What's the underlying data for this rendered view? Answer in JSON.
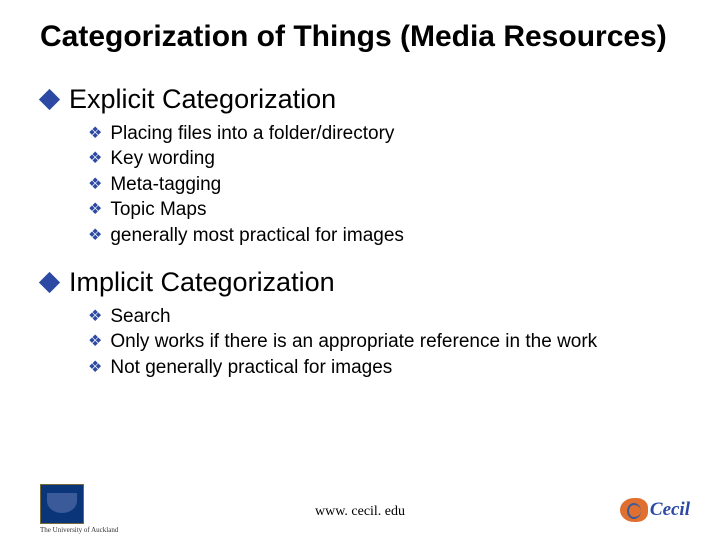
{
  "slide": {
    "title": "Categorization of Things (Media Resources)",
    "sections": [
      {
        "heading": "Explicit Categorization",
        "items": [
          "Placing files into a folder/directory",
          "Key wording",
          "Meta-tagging",
          "Topic Maps",
          "generally most practical for images"
        ]
      },
      {
        "heading": "Implicit Categorization",
        "items": [
          "Search",
          "Only works if there is an appropriate reference in the work",
          "Not generally practical for images"
        ]
      }
    ],
    "footer_url": "www. cecil. edu",
    "logo_left_caption": "The University of Auckland",
    "logo_right_text": "Cecil"
  },
  "styling": {
    "background_color": "#ffffff",
    "title_fontsize": 30,
    "title_color": "#000000",
    "heading_fontsize": 27,
    "heading_color": "#000000",
    "body_fontsize": 19,
    "body_color": "#000000",
    "bullet_color": "#2c4aa3",
    "footer_fontsize": 14,
    "logo_left_bg": "#0a3578",
    "logo_right_color": "#2c4aa3",
    "logo_right_accent": "#e07030",
    "font_family": "Arial"
  }
}
